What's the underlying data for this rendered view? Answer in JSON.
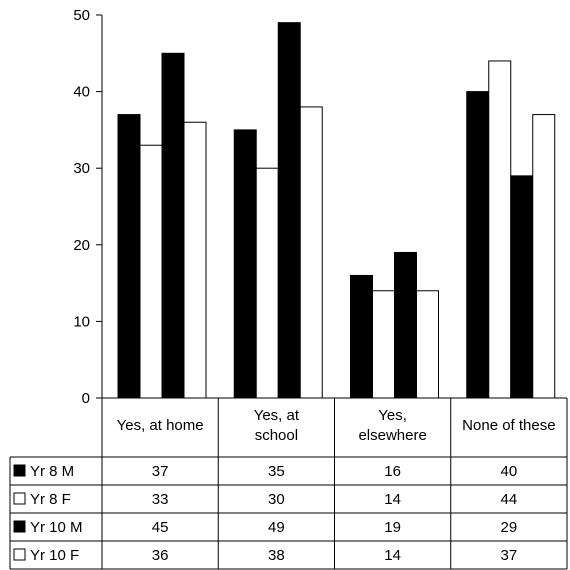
{
  "chart_data": {
    "type": "bar",
    "title": "",
    "xlabel": "",
    "ylabel": "",
    "ylim": [
      0,
      50
    ],
    "yticks": [
      0,
      10,
      20,
      30,
      40,
      50
    ],
    "categories": [
      [
        "Yes, at home"
      ],
      [
        "Yes, at",
        "school"
      ],
      [
        "Yes,",
        "elsewhere"
      ],
      [
        "None of these"
      ]
    ],
    "series": [
      {
        "name": "Yr 8 M",
        "values": [
          37,
          35,
          16,
          40
        ],
        "color": "#000000"
      },
      {
        "name": "Yr 8 F",
        "values": [
          33,
          30,
          14,
          44
        ],
        "color": "#ffffff"
      },
      {
        "name": "Yr 10 M",
        "values": [
          45,
          49,
          19,
          29
        ],
        "color": "#000000"
      },
      {
        "name": "Yr 10 F",
        "values": [
          36,
          38,
          14,
          37
        ],
        "color": "#ffffff"
      }
    ],
    "grid": false,
    "legend": "data-table"
  }
}
